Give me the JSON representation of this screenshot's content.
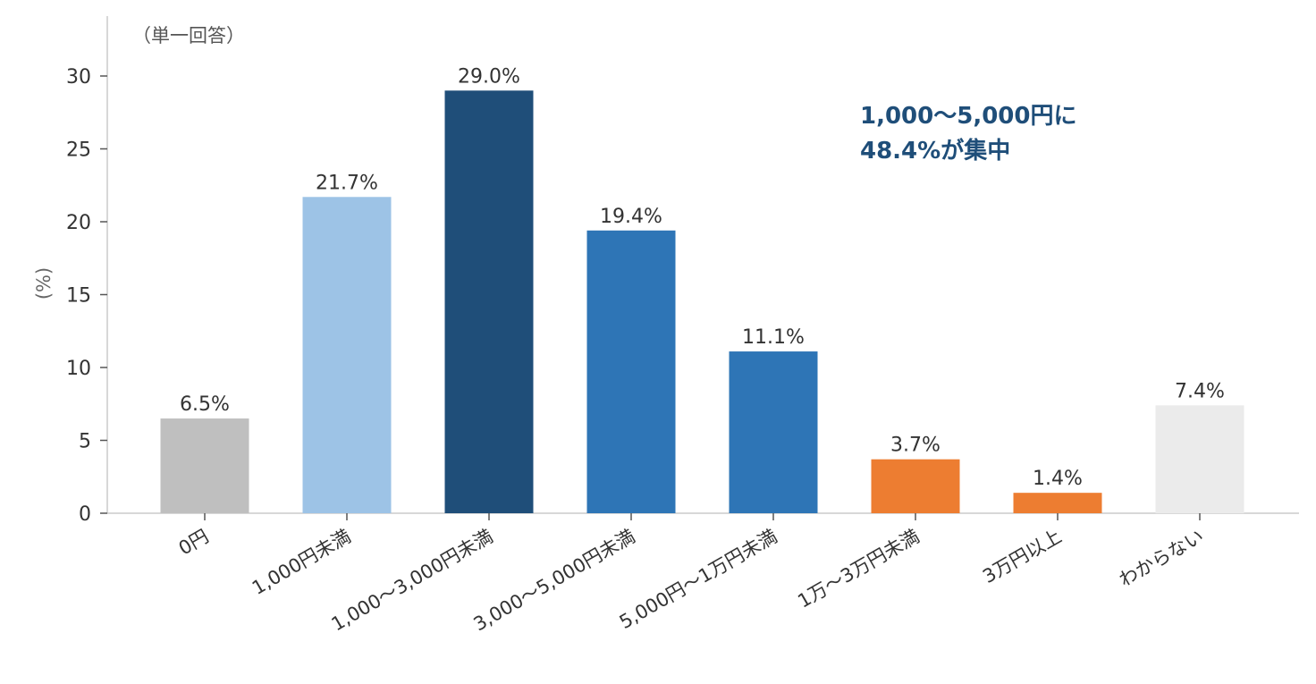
{
  "chart_data": {
    "type": "bar",
    "note": "（単一回答）",
    "ylabel": "(%)",
    "ylim": [
      0,
      32
    ],
    "yticks": [
      0,
      5,
      10,
      15,
      20,
      25,
      30
    ],
    "categories": [
      "0円",
      "1,000円未満",
      "1,000～3,000円未満",
      "3,000～5,000円未満",
      "5,000円～1万円未満",
      "1万～3万円未満",
      "3万円以上",
      "わからない"
    ],
    "values": [
      6.5,
      21.7,
      29.0,
      19.4,
      11.1,
      3.7,
      1.4,
      7.4
    ],
    "value_labels": [
      "6.5%",
      "21.7%",
      "29.0%",
      "19.4%",
      "11.1%",
      "3.7%",
      "1.4%",
      "7.4%"
    ],
    "colors": [
      "#bfbfbf",
      "#9dc3e6",
      "#1f4e79",
      "#2e75b6",
      "#2e75b6",
      "#ed7d31",
      "#ed7d31",
      "#ebebeb"
    ],
    "annotation": {
      "lines": [
        "1,000～5,000円に",
        "48.4%が集中"
      ],
      "color": "#1f4e79"
    },
    "grid": false
  }
}
